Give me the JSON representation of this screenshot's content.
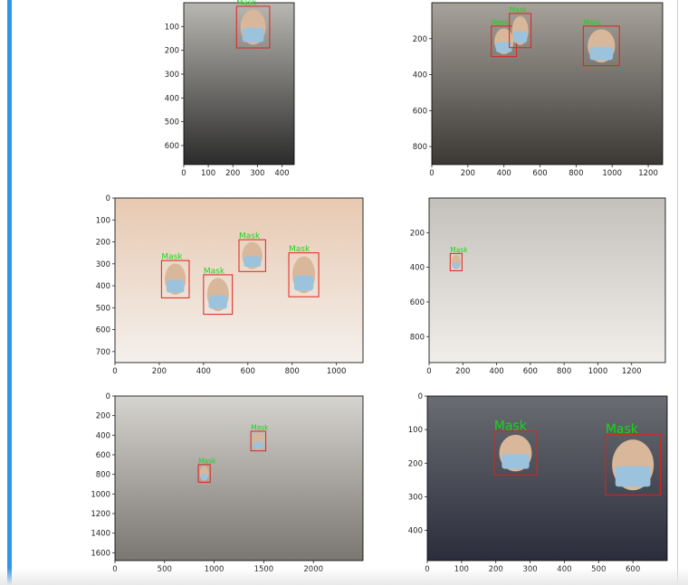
{
  "ui": {
    "accent_color": "#2f97e8",
    "border_color": "#d0d0d0"
  },
  "chart_data": [
    {
      "type": "image",
      "photo_colors": [
        "#b9b7b1",
        "#2b2b2b"
      ],
      "x_ticks": [
        0,
        100,
        200,
        300,
        400
      ],
      "y_ticks": [
        100,
        200,
        300,
        400,
        500,
        600
      ],
      "x_tick_labels": [
        "0",
        "100",
        "200",
        "300",
        "400"
      ],
      "y_tick_labels": [
        "100",
        "200",
        "300",
        "400",
        "500",
        "600"
      ],
      "xlim": [
        0,
        450
      ],
      "ylim": [
        0,
        680
      ],
      "detections": [
        {
          "label": "Mask",
          "x0": 215,
          "y0": 15,
          "x1": 350,
          "y1": 190
        }
      ]
    },
    {
      "type": "image",
      "photo_colors": [
        "#a7a39b",
        "#3c3835"
      ],
      "x_ticks": [
        0,
        200,
        400,
        600,
        800,
        1000,
        1200
      ],
      "y_ticks": [
        200,
        400,
        600,
        800
      ],
      "x_tick_labels": [
        "0",
        "200",
        "400",
        "600",
        "800",
        "1000",
        "1200"
      ],
      "y_tick_labels": [
        "200",
        "400",
        "600",
        "800"
      ],
      "xlim": [
        0,
        1280
      ],
      "ylim": [
        0,
        900
      ],
      "detections": [
        {
          "label": "Mask",
          "x0": 330,
          "y0": 130,
          "x1": 470,
          "y1": 300
        },
        {
          "label": "Mask",
          "x0": 430,
          "y0": 60,
          "x1": 550,
          "y1": 250
        },
        {
          "label": "Mask",
          "x0": 840,
          "y0": 130,
          "x1": 1040,
          "y1": 350
        }
      ]
    },
    {
      "type": "image",
      "photo_colors": [
        "#e7c9b1",
        "#f4f0ec"
      ],
      "x_ticks": [
        0,
        200,
        400,
        600,
        800,
        1000
      ],
      "y_ticks": [
        0,
        100,
        200,
        300,
        400,
        500,
        600,
        700
      ],
      "x_tick_labels": [
        "0",
        "200",
        "400",
        "600",
        "800",
        "1000"
      ],
      "y_tick_labels": [
        "0",
        "100",
        "200",
        "300",
        "400",
        "500",
        "600",
        "700"
      ],
      "xlim": [
        0,
        1120
      ],
      "ylim": [
        0,
        750
      ],
      "detections": [
        {
          "label": "Mask",
          "x0": 210,
          "y0": 285,
          "x1": 335,
          "y1": 455
        },
        {
          "label": "Mask",
          "x0": 400,
          "y0": 350,
          "x1": 530,
          "y1": 530
        },
        {
          "label": "Mask",
          "x0": 560,
          "y0": 190,
          "x1": 680,
          "y1": 335
        },
        {
          "label": "Mask",
          "x0": 785,
          "y0": 250,
          "x1": 920,
          "y1": 450
        }
      ]
    },
    {
      "type": "image",
      "photo_colors": [
        "#c4c1bb",
        "#f1eeea"
      ],
      "x_ticks": [
        0,
        200,
        400,
        600,
        800,
        1000,
        1200
      ],
      "y_ticks": [
        200,
        400,
        600,
        800
      ],
      "x_tick_labels": [
        "0",
        "200",
        "400",
        "600",
        "800",
        "1000",
        "1200"
      ],
      "y_tick_labels": [
        "200",
        "400",
        "600",
        "800"
      ],
      "xlim": [
        0,
        1400
      ],
      "ylim": [
        0,
        950
      ],
      "detections": [
        {
          "label": "Mask",
          "x0": 125,
          "y0": 320,
          "x1": 195,
          "y1": 420
        }
      ]
    },
    {
      "type": "image",
      "photo_colors": [
        "#d6d4cf",
        "#7a7670"
      ],
      "x_ticks": [
        0,
        500,
        1000,
        1500,
        2000
      ],
      "y_ticks": [
        0,
        200,
        400,
        600,
        800,
        1000,
        1200,
        1400,
        1600
      ],
      "x_tick_labels": [
        "0",
        "500",
        "1000",
        "1500",
        "2000"
      ],
      "y_tick_labels": [
        "0",
        "200",
        "400",
        "600",
        "800",
        "1000",
        "1200",
        "1400",
        "1600"
      ],
      "xlim": [
        0,
        2500
      ],
      "ylim": [
        0,
        1680
      ],
      "detections": [
        {
          "label": "Mask",
          "x0": 840,
          "y0": 700,
          "x1": 960,
          "y1": 880
        },
        {
          "label": "Mask",
          "x0": 1370,
          "y0": 360,
          "x1": 1520,
          "y1": 560
        }
      ]
    },
    {
      "type": "image",
      "photo_colors": [
        "#6a6c72",
        "#2b2d3c"
      ],
      "x_ticks": [
        0,
        100,
        200,
        300,
        400,
        500,
        600
      ],
      "y_ticks": [
        0,
        100,
        200,
        300,
        400
      ],
      "x_tick_labels": [
        "0",
        "100",
        "200",
        "300",
        "400",
        "500",
        "600"
      ],
      "y_tick_labels": [
        "0",
        "100",
        "200",
        "300",
        "400"
      ],
      "xlim": [
        0,
        700
      ],
      "ylim": [
        0,
        490
      ],
      "detections": [
        {
          "label": "Mask",
          "x0": 195,
          "y0": 105,
          "x1": 320,
          "y1": 235
        },
        {
          "label": "Mask",
          "x0": 520,
          "y0": 115,
          "x1": 680,
          "y1": 295
        }
      ]
    }
  ]
}
